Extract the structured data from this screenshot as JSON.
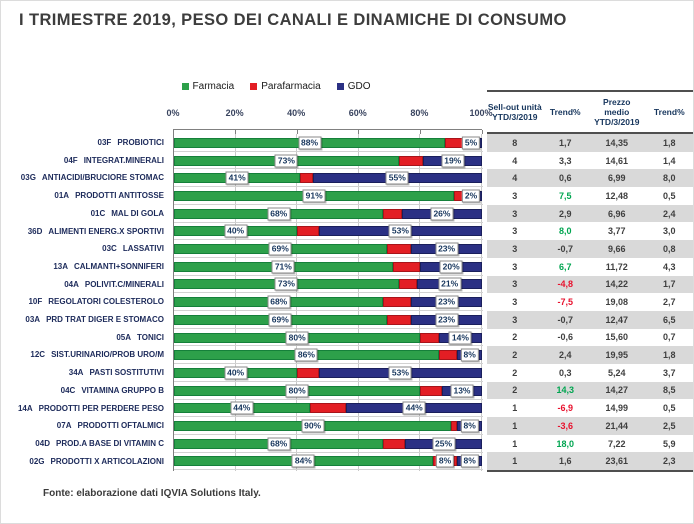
{
  "title": "I TRIMESTRE 2019, PESO DEI CANALI E DINAMICHE DI CONSUMO",
  "footer": "Fonte: elaborazione dati IQVIA Solutions Italy.",
  "colors": {
    "farmacia": "#2DA04A",
    "farmacia_border": "#15803A",
    "parafarmacia": "#E31E24",
    "parafarmacia_border": "#A8141A",
    "gdo": "#2B3084",
    "gdo_border": "#1A1F5C",
    "trend_up": "#00A550",
    "trend_down": "#E8112D",
    "neutral": "#3F3F3F"
  },
  "legend": {
    "items": [
      {
        "label": "Farmacia",
        "color_key": "farmacia"
      },
      {
        "label": "Parafarmacia",
        "color_key": "parafarmacia"
      },
      {
        "label": "GDO",
        "color_key": "gdo"
      }
    ]
  },
  "chart_data": {
    "type": "bar",
    "orientation": "horizontal-stacked",
    "xlim": [
      0,
      100
    ],
    "x_ticks": [
      "0%",
      "20%",
      "40%",
      "60%",
      "80%",
      "100%"
    ],
    "series_names": [
      "Farmacia",
      "Parafarmacia",
      "GDO"
    ],
    "rows": [
      {
        "code": "03F",
        "label": "PROBIOTICI",
        "farmacia": 88,
        "parafarmacia": 7,
        "gdo": 5,
        "para_label": false
      },
      {
        "code": "04F",
        "label": "INTEGRAT.MINERALI",
        "farmacia": 73,
        "parafarmacia": 8,
        "gdo": 19,
        "para_label": false
      },
      {
        "code": "03G",
        "label": "ANTIACIDI/BRUCIORE STOMAC",
        "farmacia": 41,
        "parafarmacia": 4,
        "gdo": 55,
        "para_label": false
      },
      {
        "code": "01A",
        "label": "PRODOTTI ANTITOSSE",
        "farmacia": 91,
        "parafarmacia": 7,
        "gdo": 2,
        "para_label": false
      },
      {
        "code": "01C",
        "label": "MAL DI GOLA",
        "farmacia": 68,
        "parafarmacia": 6,
        "gdo": 26,
        "para_label": false
      },
      {
        "code": "36D",
        "label": "ALIMENTI ENERG.X SPORTIVI",
        "farmacia": 40,
        "parafarmacia": 7,
        "gdo": 53,
        "para_label": false
      },
      {
        "code": "03C",
        "label": "LASSATIVI",
        "farmacia": 69,
        "parafarmacia": 8,
        "gdo": 23,
        "para_label": false
      },
      {
        "code": "13A",
        "label": "CALMANTI+SONNIFERI",
        "farmacia": 71,
        "parafarmacia": 9,
        "gdo": 20,
        "para_label": false
      },
      {
        "code": "04A",
        "label": "POLIVIT.C/MINERALI",
        "farmacia": 73,
        "parafarmacia": 6,
        "gdo": 21,
        "para_label": false
      },
      {
        "code": "10F",
        "label": "REGOLATORI COLESTEROLO",
        "farmacia": 68,
        "parafarmacia": 9,
        "gdo": 23,
        "para_label": false
      },
      {
        "code": "03A",
        "label": "PRD TRAT DIGER E STOMACO",
        "farmacia": 69,
        "parafarmacia": 8,
        "gdo": 23,
        "para_label": false
      },
      {
        "code": "05A",
        "label": "TONICI",
        "farmacia": 80,
        "parafarmacia": 6,
        "gdo": 14,
        "para_label": false
      },
      {
        "code": "12C",
        "label": "SIST.URINARIO/PROB URO/M",
        "farmacia": 86,
        "parafarmacia": 6,
        "gdo": 8,
        "para_label": false
      },
      {
        "code": "34A",
        "label": "PASTI SOSTITUTIVI",
        "farmacia": 40,
        "parafarmacia": 7,
        "gdo": 53,
        "para_label": false
      },
      {
        "code": "04C",
        "label": "VITAMINA GRUPPO B",
        "farmacia": 80,
        "parafarmacia": 7,
        "gdo": 13,
        "para_label": false
      },
      {
        "code": "14A",
        "label": "PRODOTTI PER PERDERE PESO",
        "farmacia": 44,
        "parafarmacia": 12,
        "gdo": 44,
        "para_label": false
      },
      {
        "code": "07A",
        "label": "PRODOTTI OFTALMICI",
        "farmacia": 90,
        "parafarmacia": 2,
        "gdo": 8,
        "para_label": false
      },
      {
        "code": "04D",
        "label": "PROD.A BASE DI VITAMIN C",
        "farmacia": 68,
        "parafarmacia": 7,
        "gdo": 25,
        "para_label": false
      },
      {
        "code": "02G",
        "label": "PRODOTTI X ARTICOLAZIONI",
        "farmacia": 84,
        "parafarmacia": 8,
        "gdo": 8,
        "para_label": true
      }
    ]
  },
  "table": {
    "headers": [
      "Sell-out unità\nYTD/3/2019",
      "Trend%",
      "Prezzo\nmedio\nYTD/3/2019",
      "Trend%"
    ],
    "rows": [
      {
        "units": "8",
        "trend_units": "1,7",
        "trend_units_color": "n",
        "price": "14,35",
        "trend_price": "1,8"
      },
      {
        "units": "4",
        "trend_units": "3,3",
        "trend_units_color": "n",
        "price": "14,61",
        "trend_price": "1,4"
      },
      {
        "units": "4",
        "trend_units": "0,6",
        "trend_units_color": "n",
        "price": "6,99",
        "trend_price": "8,0"
      },
      {
        "units": "3",
        "trend_units": "7,5",
        "trend_units_color": "g",
        "price": "12,48",
        "trend_price": "0,5"
      },
      {
        "units": "3",
        "trend_units": "2,9",
        "trend_units_color": "n",
        "price": "6,96",
        "trend_price": "2,4"
      },
      {
        "units": "3",
        "trend_units": "8,0",
        "trend_units_color": "g",
        "price": "3,77",
        "trend_price": "3,0"
      },
      {
        "units": "3",
        "trend_units": "-0,7",
        "trend_units_color": "n",
        "price": "9,66",
        "trend_price": "0,8"
      },
      {
        "units": "3",
        "trend_units": "6,7",
        "trend_units_color": "g",
        "price": "11,72",
        "trend_price": "4,3"
      },
      {
        "units": "3",
        "trend_units": "-4,8",
        "trend_units_color": "r",
        "price": "14,22",
        "trend_price": "1,7"
      },
      {
        "units": "3",
        "trend_units": "-7,5",
        "trend_units_color": "r",
        "price": "19,08",
        "trend_price": "2,7"
      },
      {
        "units": "3",
        "trend_units": "-0,7",
        "trend_units_color": "n",
        "price": "12,47",
        "trend_price": "6,5"
      },
      {
        "units": "2",
        "trend_units": "-0,6",
        "trend_units_color": "n",
        "price": "15,60",
        "trend_price": "0,7"
      },
      {
        "units": "2",
        "trend_units": "2,4",
        "trend_units_color": "n",
        "price": "19,95",
        "trend_price": "1,8"
      },
      {
        "units": "2",
        "trend_units": "0,3",
        "trend_units_color": "n",
        "price": "5,24",
        "trend_price": "3,7"
      },
      {
        "units": "2",
        "trend_units": "14,3",
        "trend_units_color": "g",
        "price": "14,27",
        "trend_price": "8,5"
      },
      {
        "units": "1",
        "trend_units": "-6,9",
        "trend_units_color": "r",
        "price": "14,99",
        "trend_price": "0,5"
      },
      {
        "units": "1",
        "trend_units": "-3,6",
        "trend_units_color": "r",
        "price": "21,44",
        "trend_price": "2,5"
      },
      {
        "units": "1",
        "trend_units": "18,0",
        "trend_units_color": "g",
        "price": "7,22",
        "trend_price": "5,9"
      },
      {
        "units": "1",
        "trend_units": "1,6",
        "trend_units_color": "n",
        "price": "23,61",
        "trend_price": "2,3"
      }
    ]
  }
}
